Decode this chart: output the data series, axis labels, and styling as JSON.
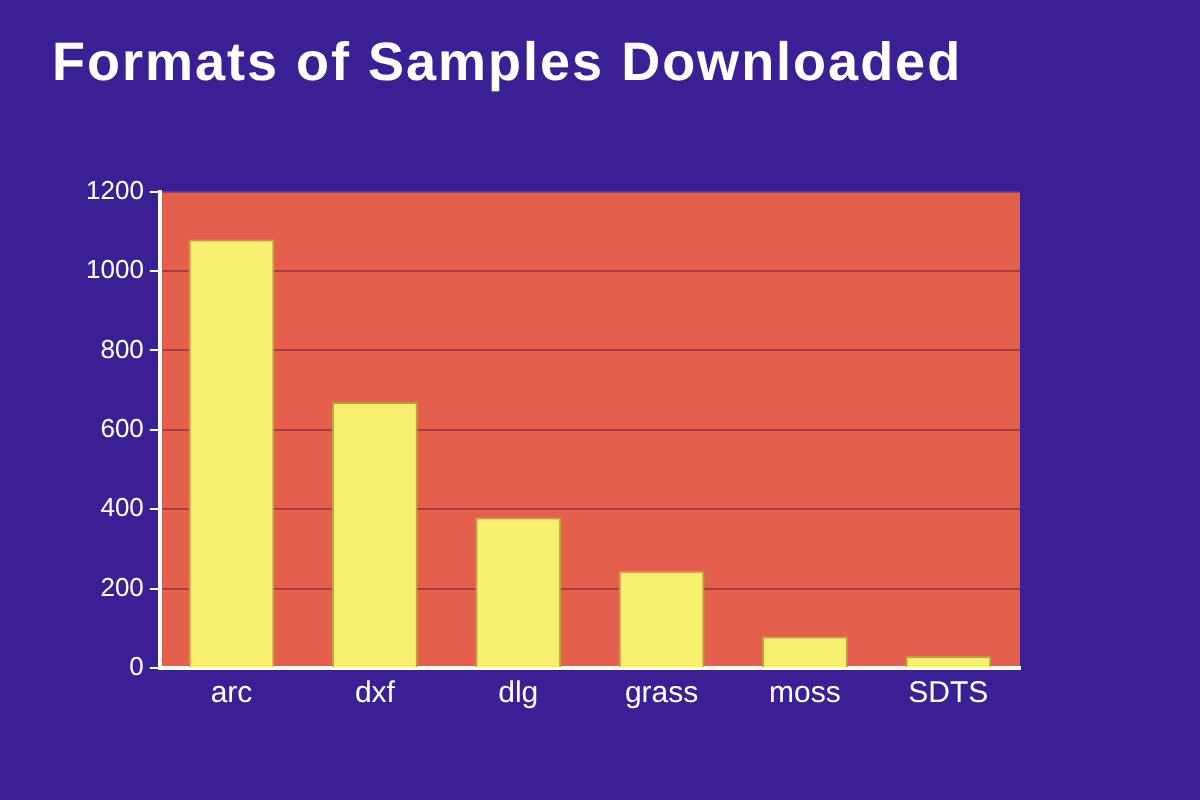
{
  "chart_data": {
    "type": "bar",
    "title": "Formats of Samples Downloaded",
    "categories": [
      "arc",
      "dxf",
      "dlg",
      "grass",
      "moss",
      "SDTS"
    ],
    "values": [
      1080,
      670,
      380,
      245,
      80,
      30
    ],
    "color": "#f6f06e",
    "ylim": [
      0,
      1200
    ],
    "yticks": [
      0,
      200,
      400,
      600,
      800,
      1000,
      1200
    ],
    "grid": "y"
  }
}
